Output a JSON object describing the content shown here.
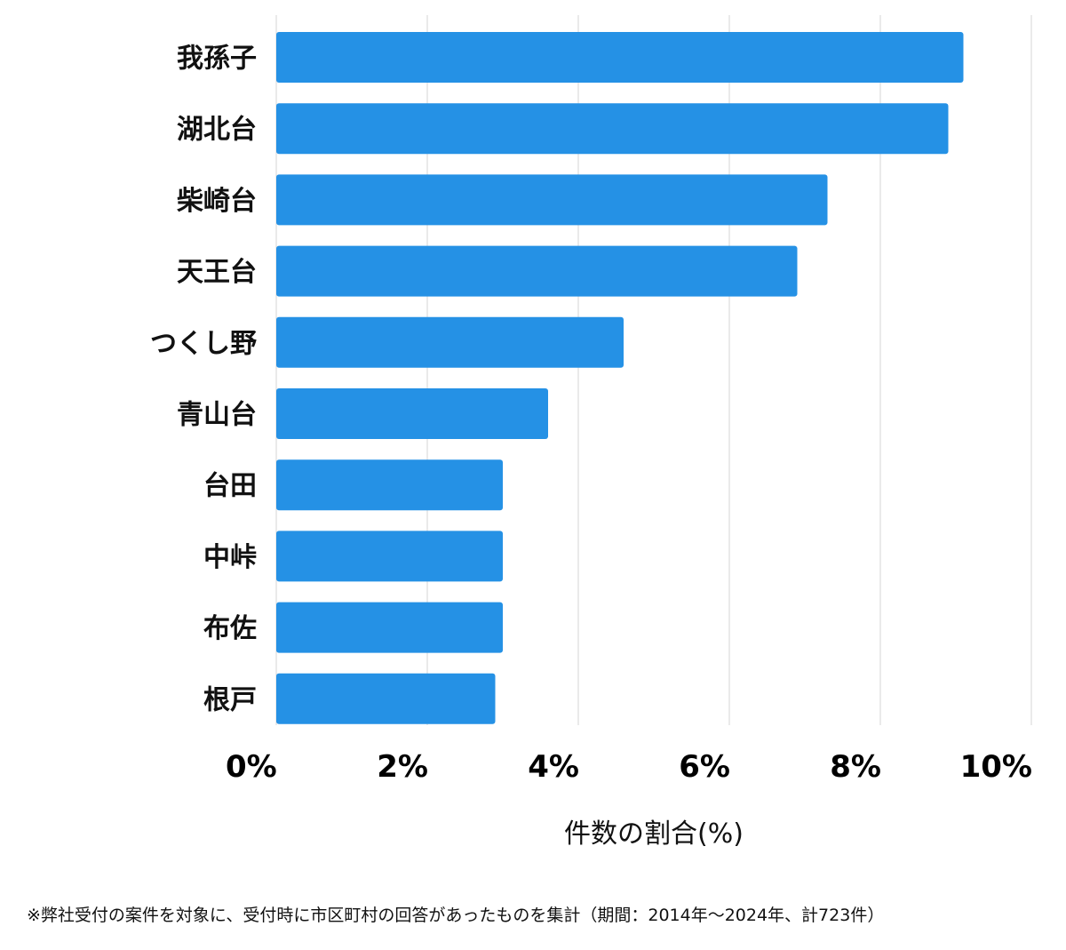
{
  "chart_data": {
    "type": "bar",
    "orientation": "horizontal",
    "categories": [
      "我孫子",
      "湖北台",
      "柴崎台",
      "天王台",
      "つくし野",
      "青山台",
      "台田",
      "中峠",
      "布佐",
      "根戸"
    ],
    "values": [
      9.1,
      8.9,
      7.3,
      6.9,
      4.6,
      3.6,
      3.0,
      3.0,
      3.0,
      2.9
    ],
    "xlabel": "件数の割合(%)",
    "ylabel": "",
    "xlim": [
      0,
      10
    ],
    "xticks": [
      0,
      2,
      4,
      6,
      8,
      10
    ],
    "tick_labels": [
      "0%",
      "2%",
      "4%",
      "6%",
      "8%",
      "10%"
    ],
    "grid": true,
    "bar_color": "#2591e5",
    "grid_color": "#d6d6d6"
  },
  "footnote": "※弊社受付の案件を対象に、受付時に市区町村の回答があったものを集計（期間：2014年〜2024年、計723件）"
}
